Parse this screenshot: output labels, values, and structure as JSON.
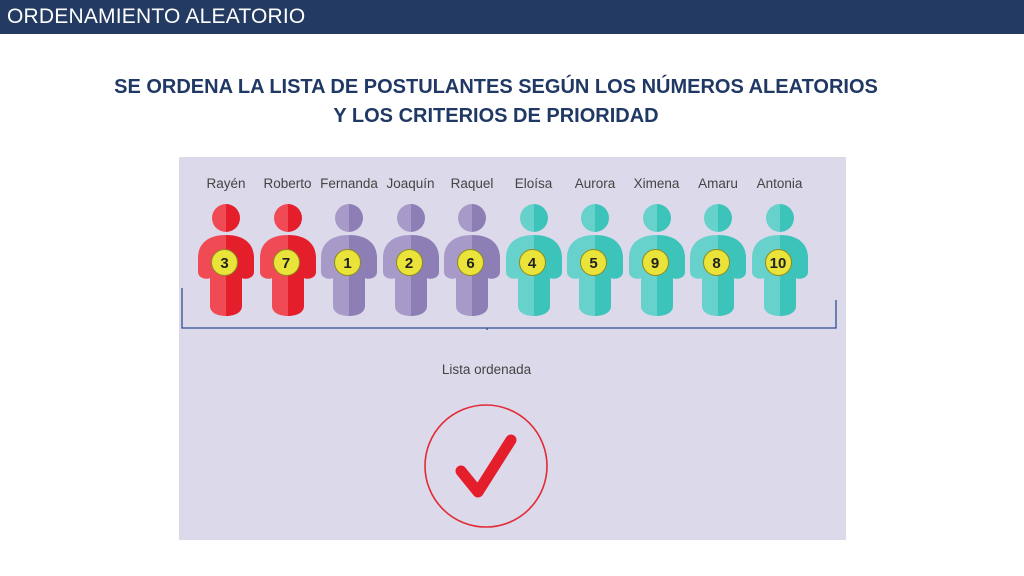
{
  "header": {
    "title": "ORDENAMIENTO ALEATORIO"
  },
  "subtitle": {
    "line1": "SE ORDENA LA LISTA DE POSTULANTES SEGÚN LOS NÚMEROS ALEATORIOS",
    "line2": "Y LOS CRITERIOS DE PRIORIDAD"
  },
  "applicants": [
    {
      "name": "Rayén",
      "number": "3",
      "group": "red"
    },
    {
      "name": "Roberto",
      "number": "7",
      "group": "red"
    },
    {
      "name": "Fernanda",
      "number": "1",
      "group": "purple"
    },
    {
      "name": "Joaquín",
      "number": "2",
      "group": "purple"
    },
    {
      "name": "Raquel",
      "number": "6",
      "group": "purple"
    },
    {
      "name": "Eloísa",
      "number": "4",
      "group": "teal"
    },
    {
      "name": "Aurora",
      "number": "5",
      "group": "teal"
    },
    {
      "name": "Ximena",
      "number": "9",
      "group": "teal"
    },
    {
      "name": "Amaru",
      "number": "8",
      "group": "teal"
    },
    {
      "name": "Antonia",
      "number": "10",
      "group": "teal"
    }
  ],
  "group_colors": {
    "red": {
      "light": "#f04a55",
      "dark": "#e41e2b"
    },
    "purple": {
      "light": "#a79ac8",
      "dark": "#8d7fb6"
    },
    "teal": {
      "light": "#67d2cb",
      "dark": "#3cc4bb"
    }
  },
  "list_label": "Lista ordenada",
  "icons": {
    "result": "checkmark-icon"
  },
  "colors": {
    "header_bg": "#233a63",
    "panel_bg": "#dcd9ea",
    "accent_red": "#e32a35",
    "bracket": "#2f4f8f"
  }
}
